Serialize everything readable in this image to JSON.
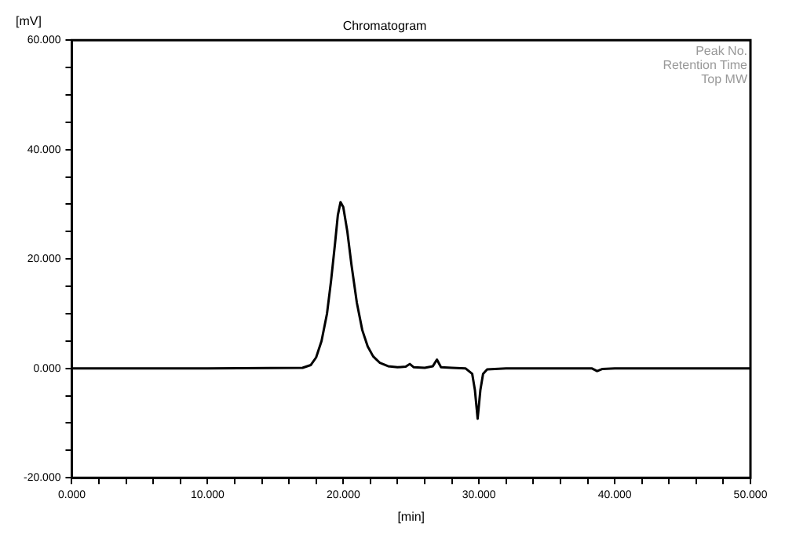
{
  "chart_data": {
    "type": "line",
    "title": "Chromatogram",
    "xlabel": "[min]",
    "ylabel": "[mV]",
    "annotations": [
      "Peak No.",
      "Retention Time",
      "Top MW"
    ],
    "series": [
      {
        "color": "#000000",
        "x": [
          0,
          10,
          17,
          17.6,
          18,
          18.4,
          18.8,
          19.1,
          19.4,
          19.6,
          19.8,
          20,
          20.3,
          20.6,
          21,
          21.4,
          21.8,
          22.2,
          22.7,
          23.3,
          24,
          24.6,
          24.9,
          25.2,
          26,
          26.6,
          26.9,
          27.2,
          28,
          29,
          29.5,
          29.7,
          29.9,
          30.1,
          30.3,
          30.6,
          32,
          38.3,
          38.7,
          39.1,
          40,
          50
        ],
        "values": [
          0,
          0,
          0.1,
          0.6,
          2,
          5,
          10,
          16,
          23,
          28,
          30.4,
          29.5,
          25,
          19,
          12,
          7,
          4,
          2.2,
          1,
          0.4,
          0.2,
          0.3,
          0.8,
          0.2,
          0.1,
          0.4,
          1.6,
          0.2,
          0.1,
          0,
          -1,
          -4,
          -9.2,
          -4,
          -1,
          -0.2,
          0,
          0,
          -0.5,
          -0.1,
          0,
          0
        ]
      }
    ],
    "xlim": [
      0,
      50
    ],
    "xticks": [
      {
        "value": 0,
        "label": "0.000"
      },
      {
        "value": 2,
        "label": null
      },
      {
        "value": 4,
        "label": null
      },
      {
        "value": 6,
        "label": null
      },
      {
        "value": 8,
        "label": null
      },
      {
        "value": 10,
        "label": "10.000"
      },
      {
        "value": 12,
        "label": null
      },
      {
        "value": 14,
        "label": null
      },
      {
        "value": 16,
        "label": null
      },
      {
        "value": 18,
        "label": null
      },
      {
        "value": 20,
        "label": "20.000"
      },
      {
        "value": 22,
        "label": null
      },
      {
        "value": 24,
        "label": null
      },
      {
        "value": 26,
        "label": null
      },
      {
        "value": 28,
        "label": null
      },
      {
        "value": 30,
        "label": "30.000"
      },
      {
        "value": 32,
        "label": null
      },
      {
        "value": 34,
        "label": null
      },
      {
        "value": 36,
        "label": null
      },
      {
        "value": 38,
        "label": null
      },
      {
        "value": 40,
        "label": "40.000"
      },
      {
        "value": 42,
        "label": null
      },
      {
        "value": 44,
        "label": null
      },
      {
        "value": 46,
        "label": null
      },
      {
        "value": 48,
        "label": null
      },
      {
        "value": 50,
        "label": "50.000"
      }
    ],
    "ylim": [
      -20,
      60
    ],
    "yticks": [
      {
        "value": -20,
        "label": "-20.000"
      },
      {
        "value": -15,
        "label": null
      },
      {
        "value": -10,
        "label": null
      },
      {
        "value": -5,
        "label": null
      },
      {
        "value": 0,
        "label": "0.000"
      },
      {
        "value": 5,
        "label": null
      },
      {
        "value": 10,
        "label": null
      },
      {
        "value": 15,
        "label": null
      },
      {
        "value": 20,
        "label": "20.000"
      },
      {
        "value": 25,
        "label": null
      },
      {
        "value": 30,
        "label": null
      },
      {
        "value": 35,
        "label": null
      },
      {
        "value": 40,
        "label": "40.000"
      },
      {
        "value": 45,
        "label": null
      },
      {
        "value": 50,
        "label": null
      },
      {
        "value": 55,
        "label": null
      },
      {
        "value": 60,
        "label": "60.000"
      }
    ],
    "grid": false,
    "legend": false,
    "marker": "none",
    "line_style": "solid"
  }
}
